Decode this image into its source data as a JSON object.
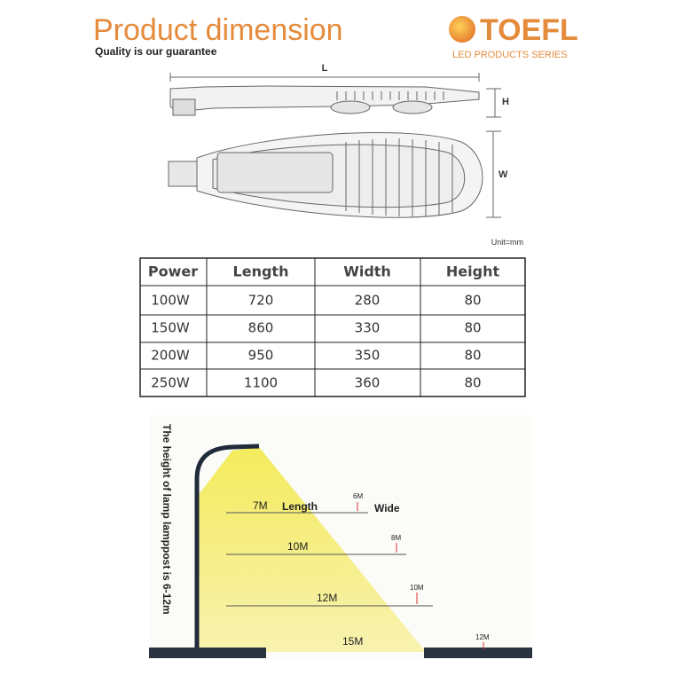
{
  "header": {
    "title": "Product dimension",
    "subtitle": "Quality is our guarantee",
    "brand": "TOEFL",
    "brand_tagline": "LED PRODUCTS SERIES"
  },
  "drawing": {
    "length_label": "L",
    "height_label": "H",
    "width_label": "W",
    "unit": "Unit=mm"
  },
  "table": {
    "header": [
      "Power",
      "Length",
      "Width",
      "Height"
    ],
    "rows": [
      [
        "100W",
        "720",
        "280",
        "80"
      ],
      [
        "150W",
        "860",
        "330",
        "80"
      ],
      [
        "200W",
        "950",
        "350",
        "80"
      ],
      [
        "250W",
        "1100",
        "360",
        "80"
      ]
    ]
  },
  "illustration": {
    "pole_height": "The height of lamp lamppost is 6-12m",
    "rows": [
      {
        "length": "7M",
        "length_word": "Length",
        "width": "6M",
        "width_word": "Wide"
      },
      {
        "length": "10M",
        "width": "8M"
      },
      {
        "length": "12M",
        "width": "10M"
      },
      {
        "length": "15M",
        "width": "12M"
      }
    ]
  }
}
